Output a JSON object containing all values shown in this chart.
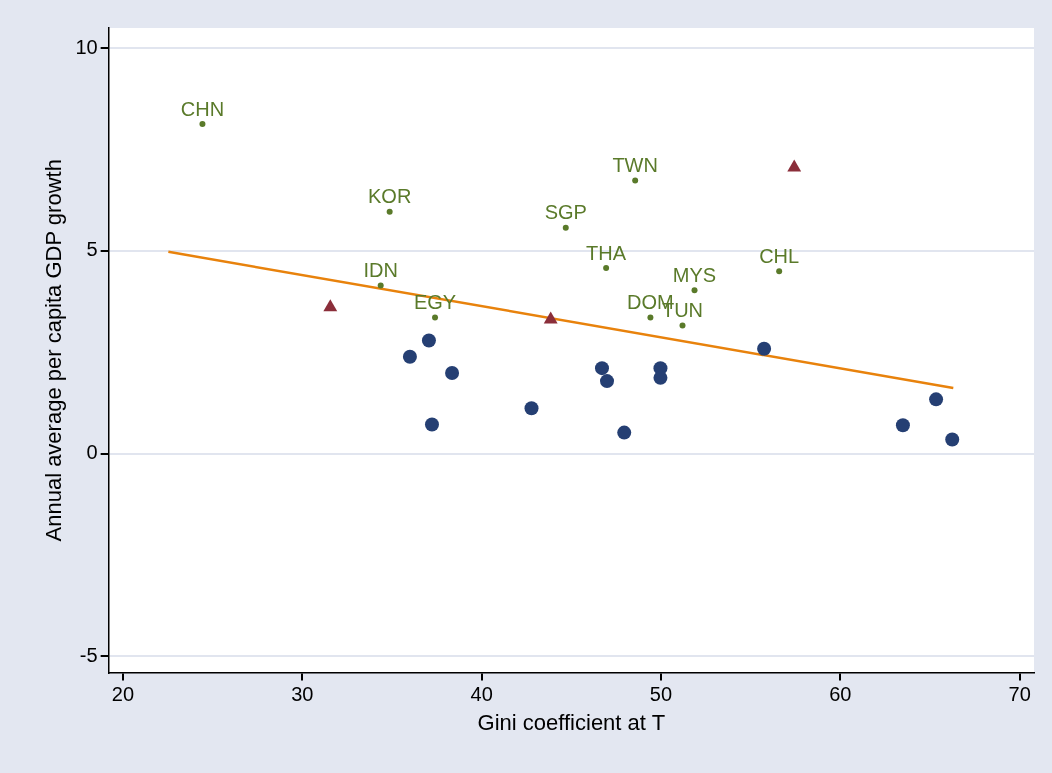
{
  "chart_data": {
    "type": "scatter",
    "xlabel": "Gini coefficient at T",
    "ylabel": "Annual average per capita GDP growth",
    "xlim": [
      19.2,
      70.8
    ],
    "xticks": [
      20,
      30,
      40,
      50,
      60,
      70
    ],
    "ylim": [
      -5.4,
      10.5
    ],
    "yticks": [
      -5,
      0,
      5,
      10
    ],
    "grid": "y",
    "legend": false,
    "series": [
      {
        "type": "scatter",
        "marker": "circle",
        "color": "#253f73",
        "x": [
          36.0,
          37.06,
          37.23,
          38.35,
          42.78,
          46.71,
          46.99,
          47.95,
          49.97,
          49.97,
          55.75,
          63.49,
          65.34,
          66.24
        ],
        "values": [
          2.39,
          2.79,
          0.72,
          1.99,
          1.12,
          2.11,
          1.79,
          0.52,
          2.11,
          1.87,
          2.59,
          0.7,
          1.34,
          0.35
        ]
      },
      {
        "type": "scatter",
        "marker": "triangle",
        "color": "#8b2e3a",
        "x": [
          31.56,
          43.85,
          57.43
        ],
        "values": [
          3.61,
          3.31,
          7.06
        ]
      },
      {
        "type": "scatter",
        "marker": "circle",
        "color": "#5a7a2a",
        "x": [
          24.43,
          34.87,
          44.69,
          48.56,
          46.94,
          34.37,
          51.87,
          56.59,
          37.4,
          49.41,
          51.2
        ],
        "values": [
          8.13,
          5.97,
          5.57,
          6.74,
          4.58,
          4.15,
          4.03,
          4.5,
          3.36,
          3.36,
          3.16
        ],
        "value_labels": [
          "CHN",
          "KOR",
          "SGP",
          "TWN",
          "THA",
          "IDN",
          "MYS",
          "CHL",
          "EGY",
          "DOM",
          "TUN"
        ]
      },
      {
        "type": "line",
        "marker": "none",
        "color": "#e8820c",
        "x": [
          22.53,
          66.3
        ],
        "values": [
          4.98,
          1.62
        ]
      }
    ]
  }
}
